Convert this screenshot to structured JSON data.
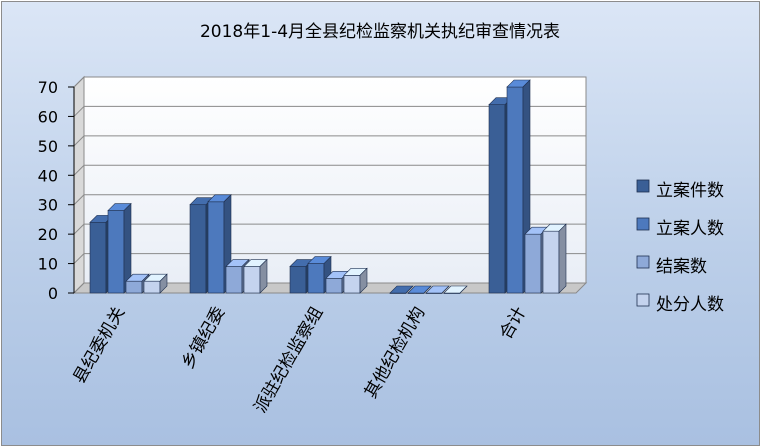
{
  "chart_data": {
    "type": "bar",
    "title": "2018年1-4月全县纪检监察机关执纪审查情况表",
    "categories": [
      "县纪委机关",
      "乡镇纪委",
      "派驻纪检监察组",
      "其他纪检机构",
      "合计"
    ],
    "series": [
      {
        "name": "立案件数",
        "values": [
          24,
          30,
          9,
          0,
          64
        ],
        "color": "#3a5f96"
      },
      {
        "name": "立案人数",
        "values": [
          28,
          31,
          10,
          0,
          70
        ],
        "color": "#4d79bd"
      },
      {
        "name": "结案数",
        "values": [
          4,
          9,
          5,
          0,
          20
        ],
        "color": "#8ea9d8"
      },
      {
        "name": "处分人数",
        "values": [
          4,
          9,
          6,
          0,
          21
        ],
        "color": "#c4d3ee"
      }
    ],
    "ylim": [
      0,
      70
    ],
    "yticks": [
      "0",
      "10",
      "20",
      "30",
      "40",
      "50",
      "60",
      "70"
    ],
    "grid": true,
    "legend_position": "right"
  }
}
